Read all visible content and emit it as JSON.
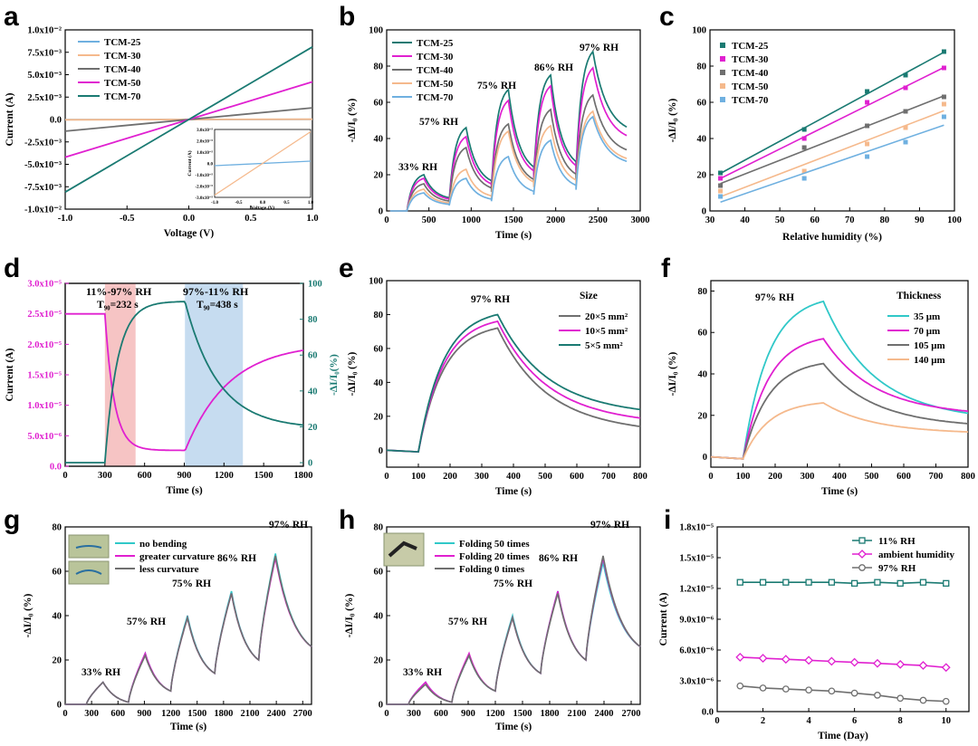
{
  "colors": {
    "teal": "#1a7a72",
    "magenta": "#e020d0",
    "gray": "#6f6f6f",
    "peach": "#f5b98c",
    "lightblue": "#6fb0e0",
    "cyan": "#30c8c8",
    "pink_band": "#f6c4c4",
    "blue_band": "#c6dcf0"
  },
  "chart_data": [
    {
      "panel": "a",
      "type": "line",
      "xlabel": "Voltage (V)",
      "ylabel": "Current (A)",
      "xlim": [
        -1.0,
        1.0
      ],
      "ylim": [
        -0.01,
        0.01
      ],
      "xticks": [
        "-1.0",
        "-0.5",
        "0.0",
        "0.5",
        "1.0"
      ],
      "yticks": [
        "-1.0x10⁻²",
        "-7.5x10⁻³",
        "-5.0x10⁻³",
        "-2.5x10⁻³",
        "0.0",
        "2.5x10⁻³",
        "5.0x10⁻³",
        "7.5x10⁻³",
        "1.0x10⁻²"
      ],
      "series": [
        {
          "name": "TCM-25",
          "slope": 2e-05
        },
        {
          "name": "TCM-30",
          "slope": 3e-05
        },
        {
          "name": "TCM-40",
          "slope": 0.0013
        },
        {
          "name": "TCM-50",
          "slope": 0.0042
        },
        {
          "name": "TCM-70",
          "slope": 0.0081
        }
      ],
      "inset": {
        "xlabel": "Voltage (V)",
        "ylabel": "Current (A)",
        "xticks": [
          "-1.0",
          "-0.5",
          "0.0",
          "0.5",
          "1.0"
        ],
        "yticks": [
          "-3.0x10⁻⁵",
          "-2.0x10⁻⁵",
          "-1.0x10⁻⁵",
          "0.0",
          "1.0x10⁻⁵",
          "2.0x10⁻⁵",
          "3.0x10⁻⁵"
        ],
        "series": [
          {
            "name": "TCM-25",
            "slope": 2e-06
          },
          {
            "name": "TCM-30",
            "slope": 2.8e-05
          }
        ]
      }
    },
    {
      "panel": "b",
      "type": "line",
      "xlabel": "Time (s)",
      "ylabel": "-ΔI/I₀ (%)",
      "xlim": [
        0,
        3000
      ],
      "ylim": [
        0,
        100
      ],
      "xticks": [
        "0",
        "500",
        "1000",
        "1500",
        "2000",
        "2500",
        "3000"
      ],
      "yticks": [
        "0",
        "20",
        "40",
        "60",
        "80",
        "100"
      ],
      "rh_labels": [
        "33% RH",
        "57% RH",
        "75% RH",
        "86% RH",
        "97% RH"
      ],
      "series": [
        {
          "name": "TCM-25",
          "peaks": [
            20,
            46,
            67,
            75,
            88
          ]
        },
        {
          "name": "TCM-30",
          "peaks": [
            18,
            41,
            61,
            69,
            79
          ]
        },
        {
          "name": "TCM-40",
          "peaks": [
            15,
            35,
            48,
            56,
            64
          ]
        },
        {
          "name": "TCM-50",
          "peaks": [
            12,
            23,
            44,
            47,
            55
          ]
        },
        {
          "name": "TCM-70",
          "peaks": [
            10,
            18,
            30,
            39,
            52
          ]
        }
      ]
    },
    {
      "panel": "c",
      "type": "scatter",
      "xlabel": "Relative humidity (%)",
      "ylabel": "-ΔI/I₀ (%)",
      "xlim": [
        30,
        100
      ],
      "ylim": [
        0,
        100
      ],
      "xticks": [
        "30",
        "40",
        "50",
        "60",
        "70",
        "80",
        "90",
        "100"
      ],
      "yticks": [
        "0",
        "20",
        "40",
        "60",
        "80",
        "100"
      ],
      "x": [
        33,
        57,
        75,
        86,
        97
      ],
      "series": [
        {
          "name": "TCM-25",
          "values": [
            21,
            45,
            66,
            75,
            88
          ]
        },
        {
          "name": "TCM-30",
          "values": [
            18,
            40,
            60,
            68,
            79
          ]
        },
        {
          "name": "TCM-40",
          "values": [
            14,
            35,
            47,
            55,
            63
          ]
        },
        {
          "name": "TCM-50",
          "values": [
            11,
            22,
            37,
            46,
            59
          ]
        },
        {
          "name": "TCM-70",
          "values": [
            8,
            18,
            30,
            38,
            52
          ]
        }
      ]
    },
    {
      "panel": "d",
      "type": "line",
      "xlabel": "Time (s)",
      "ylabel_left": "Current (A)",
      "ylabel_right": "-ΔI/I₀(%)",
      "xlim": [
        0,
        1800
      ],
      "xticks": [
        "0",
        "300",
        "600",
        "900",
        "1200",
        "1500",
        "1800"
      ],
      "yticks_left": [
        "0.0",
        "5.0x10⁻⁶",
        "1.0x10⁻⁵",
        "1.5x10⁻⁵",
        "2.0x10⁻⁵",
        "2.5x10⁻⁵",
        "3.0x10⁻⁵"
      ],
      "yticks_right": [
        "0",
        "20",
        "40",
        "60",
        "80",
        "100"
      ],
      "bands": [
        {
          "label": "11%-97% RH",
          "t90": "T₉₀=232 s",
          "start": 300,
          "end": 532
        },
        {
          "label": "97%-11% RH",
          "t90": "T₉₀=438 s",
          "start": 905,
          "end": 1343
        }
      ]
    },
    {
      "panel": "e",
      "type": "line",
      "xlabel": "Time (s)",
      "ylabel": "-ΔI/I₀ (%)",
      "xlim": [
        0,
        800
      ],
      "ylim": [
        -10,
        100
      ],
      "xticks": [
        "0",
        "100",
        "200",
        "300",
        "400",
        "500",
        "600",
        "700",
        "800"
      ],
      "yticks": [
        "0",
        "20",
        "40",
        "60",
        "80",
        "100"
      ],
      "annotation": "97% RH",
      "legend_title": "Size",
      "series": [
        {
          "name": "20×5 mm²",
          "peak": 72,
          "final": 14
        },
        {
          "name": "10×5 mm²",
          "peak": 76,
          "final": 19
        },
        {
          "name": "5×5 mm²",
          "peak": 80,
          "final": 24
        }
      ]
    },
    {
      "panel": "f",
      "type": "line",
      "xlabel": "Time (s)",
      "ylabel": "-ΔI/I₀ (%)",
      "xlim": [
        0,
        800
      ],
      "ylim": [
        -5,
        85
      ],
      "xticks": [
        "0",
        "100",
        "200",
        "300",
        "400",
        "500",
        "600",
        "700",
        "800"
      ],
      "yticks": [
        "0",
        "20",
        "40",
        "60",
        "80"
      ],
      "annotation": "97% RH",
      "legend_title": "Thickness",
      "series": [
        {
          "name": "35 μm",
          "peak": 75,
          "final": 21
        },
        {
          "name": "70 μm",
          "peak": 57,
          "final": 22
        },
        {
          "name": "105 μm",
          "peak": 45,
          "final": 16
        },
        {
          "name": "140 μm",
          "peak": 26,
          "final": 12
        }
      ]
    },
    {
      "panel": "g",
      "type": "line",
      "xlabel": "Time (s)",
      "ylabel": "-ΔI/I₀ (%)",
      "xlim": [
        0,
        2800
      ],
      "ylim": [
        0,
        80
      ],
      "xticks": [
        "0",
        "300",
        "600",
        "900",
        "1200",
        "1500",
        "1800",
        "2100",
        "2400",
        "2700"
      ],
      "yticks": [
        "0",
        "20",
        "40",
        "60",
        "80"
      ],
      "rh_labels": [
        "33% RH",
        "57% RH",
        "75% RH",
        "86% RH",
        "97% RH"
      ],
      "series": [
        {
          "name": "no bending",
          "peaks": [
            10,
            23,
            40,
            51,
            68
          ]
        },
        {
          "name": "greater curvature",
          "peaks": [
            10,
            23,
            39,
            50,
            66
          ]
        },
        {
          "name": "less curvature",
          "peaks": [
            10,
            22,
            39,
            50,
            67
          ]
        }
      ]
    },
    {
      "panel": "h",
      "type": "line",
      "xlabel": "Time (s)",
      "ylabel": "-ΔI/I₀ (%)",
      "xlim": [
        0,
        2800
      ],
      "ylim": [
        0,
        80
      ],
      "xticks": [
        "0",
        "300",
        "600",
        "900",
        "1200",
        "1500",
        "1800",
        "2100",
        "2400",
        "2700"
      ],
      "yticks": [
        "0",
        "20",
        "40",
        "60",
        "80"
      ],
      "rh_labels": [
        "33% RH",
        "57% RH",
        "75% RH",
        "86% RH",
        "97% RH"
      ],
      "series": [
        {
          "name": "Folding 50 times",
          "peaks": [
            10,
            22,
            40,
            51,
            64
          ]
        },
        {
          "name": "Folding 20 times",
          "peaks": [
            10,
            23,
            39,
            51,
            66
          ]
        },
        {
          "name": "Folding 0 times",
          "peaks": [
            9,
            22,
            39,
            50,
            67
          ]
        }
      ]
    },
    {
      "panel": "i",
      "type": "line",
      "xlabel": "Time (Day)",
      "ylabel": "Current (A)",
      "xlim": [
        0,
        11
      ],
      "ylim": [
        0,
        1.8e-05
      ],
      "xticks": [
        "0",
        "2",
        "4",
        "6",
        "8",
        "10"
      ],
      "yticks": [
        "0.0",
        "3.0x10⁻⁶",
        "6.0x10⁻⁶",
        "9.0x10⁻⁶",
        "1.2x10⁻⁵",
        "1.5x10⁻⁵",
        "1.8x10⁻⁵"
      ],
      "x": [
        1,
        2,
        3,
        4,
        5,
        6,
        7,
        8,
        9,
        10
      ],
      "series": [
        {
          "name": "11% RH",
          "values": [
            1.26e-05,
            1.26e-05,
            1.26e-05,
            1.26e-05,
            1.26e-05,
            1.25e-05,
            1.26e-05,
            1.25e-05,
            1.26e-05,
            1.25e-05
          ]
        },
        {
          "name": "ambient humidity",
          "values": [
            5.3e-06,
            5.2e-06,
            5.1e-06,
            5e-06,
            4.9e-06,
            4.8e-06,
            4.7e-06,
            4.6e-06,
            4.5e-06,
            4.3e-06
          ]
        },
        {
          "name": "97% RH",
          "values": [
            2.5e-06,
            2.3e-06,
            2.2e-06,
            2.1e-06,
            2e-06,
            1.8e-06,
            1.6e-06,
            1.3e-06,
            1.1e-06,
            1e-06
          ]
        }
      ]
    }
  ]
}
